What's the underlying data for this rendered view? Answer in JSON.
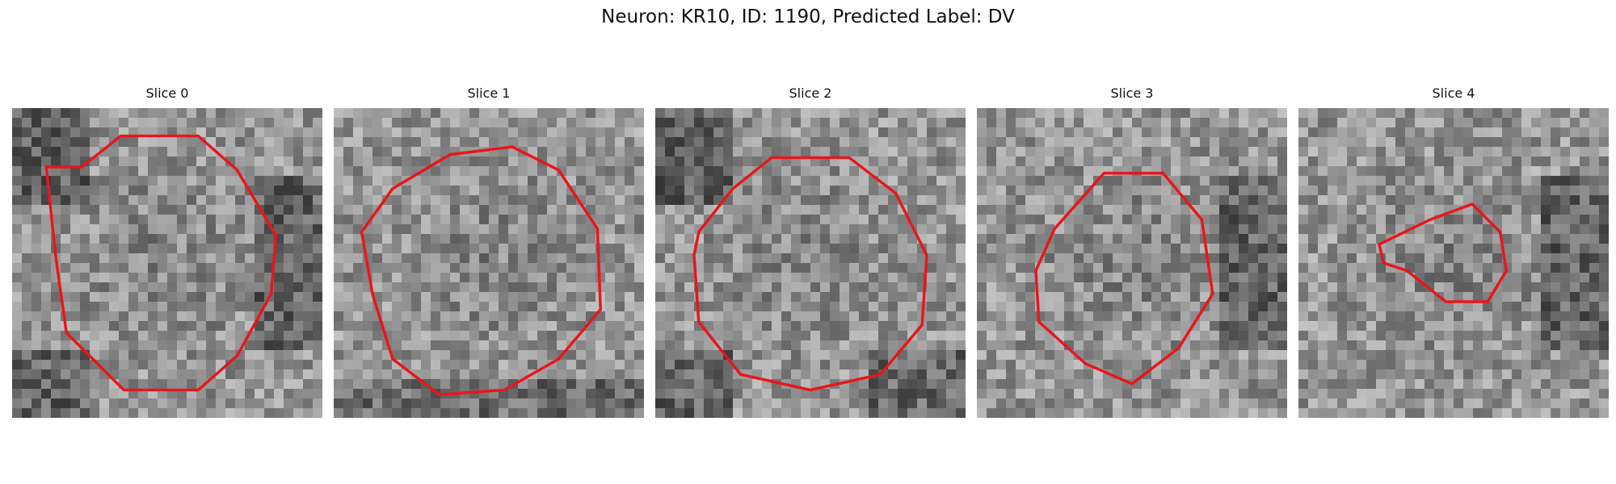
{
  "figure": {
    "title": "Neuron: KR10, ID: 1190, Predicted Label: DV"
  },
  "contour_color": "#e8161b",
  "slices": [
    {
      "title": "Slice 0",
      "bg_seed": 11,
      "dark_corners": [
        "tl",
        "bl",
        "right"
      ],
      "contour": [
        [
          -0.55,
          0.62
        ],
        [
          -0.3,
          0.82
        ],
        [
          0.2,
          0.82
        ],
        [
          0.45,
          0.6
        ],
        [
          0.7,
          0.18
        ],
        [
          0.67,
          -0.2
        ],
        [
          0.45,
          -0.6
        ],
        [
          0.2,
          -0.82
        ],
        [
          -0.28,
          -0.82
        ],
        [
          -0.65,
          -0.45
        ],
        [
          -0.72,
          0.05
        ],
        [
          -0.78,
          0.62
        ]
      ]
    },
    {
      "title": "Slice 1",
      "bg_seed": 23,
      "dark_corners": [
        "bottom"
      ],
      "contour": [
        [
          -0.62,
          0.48
        ],
        [
          -0.25,
          0.7
        ],
        [
          0.15,
          0.75
        ],
        [
          0.45,
          0.6
        ],
        [
          0.7,
          0.22
        ],
        [
          0.72,
          -0.3
        ],
        [
          0.45,
          -0.62
        ],
        [
          0.1,
          -0.82
        ],
        [
          -0.32,
          -0.85
        ],
        [
          -0.62,
          -0.62
        ],
        [
          -0.75,
          -0.2
        ],
        [
          -0.82,
          0.2
        ]
      ]
    },
    {
      "title": "Slice 2",
      "bg_seed": 37,
      "dark_corners": [
        "tl",
        "bl",
        "br"
      ],
      "contour": [
        [
          -0.5,
          0.48
        ],
        [
          -0.25,
          0.68
        ],
        [
          0.25,
          0.68
        ],
        [
          0.55,
          0.45
        ],
        [
          0.75,
          0.05
        ],
        [
          0.72,
          -0.4
        ],
        [
          0.45,
          -0.72
        ],
        [
          0.0,
          -0.82
        ],
        [
          -0.45,
          -0.72
        ],
        [
          -0.72,
          -0.38
        ],
        [
          -0.75,
          0.05
        ],
        [
          -0.72,
          0.2
        ]
      ]
    },
    {
      "title": "Slice 3",
      "bg_seed": 51,
      "dark_corners": [
        "right"
      ],
      "contour": [
        [
          -0.5,
          0.22
        ],
        [
          -0.18,
          0.58
        ],
        [
          0.2,
          0.58
        ],
        [
          0.45,
          0.28
        ],
        [
          0.52,
          -0.2
        ],
        [
          0.3,
          -0.55
        ],
        [
          0.0,
          -0.78
        ],
        [
          -0.3,
          -0.65
        ],
        [
          -0.6,
          -0.38
        ],
        [
          -0.62,
          -0.05
        ]
      ]
    },
    {
      "title": "Slice 4",
      "bg_seed": 67,
      "dark_corners": [
        "right"
      ],
      "contour": [
        [
          -0.48,
          0.12
        ],
        [
          -0.15,
          0.28
        ],
        [
          0.12,
          0.38
        ],
        [
          0.3,
          0.2
        ],
        [
          0.34,
          -0.05
        ],
        [
          0.22,
          -0.25
        ],
        [
          -0.05,
          -0.25
        ],
        [
          -0.3,
          -0.05
        ],
        [
          -0.45,
          0.0
        ]
      ]
    }
  ]
}
